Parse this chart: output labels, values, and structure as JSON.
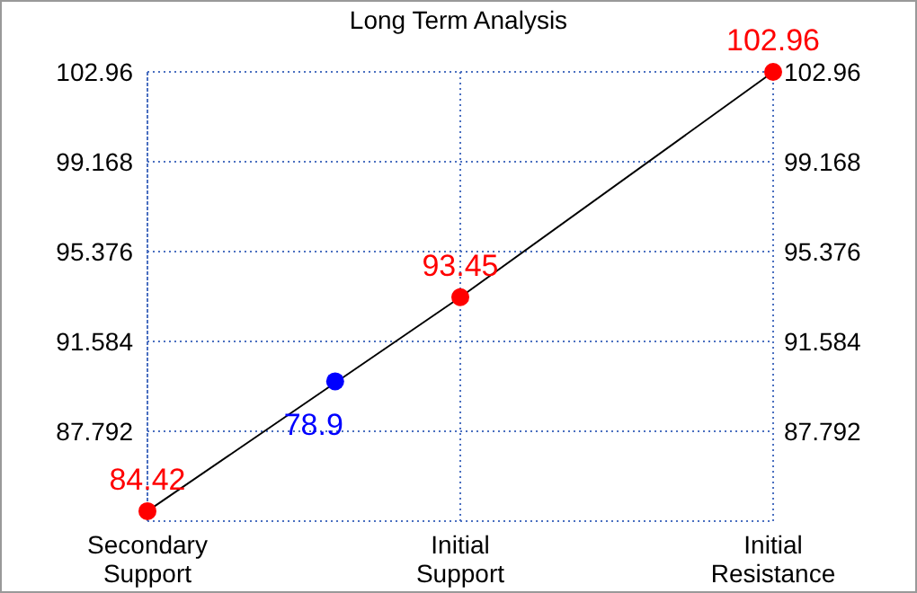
{
  "chart_data": {
    "type": "line",
    "title": "Long Term Analysis",
    "categories": [
      "Secondary\nSupport",
      null,
      null,
      null,
      null,
      "Initial\nSupport",
      null,
      null,
      null,
      null,
      "Initial\nResistance"
    ],
    "ylim": [
      84,
      102.96
    ],
    "yticks": [
      87.792,
      91.584,
      95.376,
      99.168,
      102.96
    ],
    "y2lim": [
      84,
      102.96
    ],
    "y2ticks": [
      87.792,
      91.584,
      95.376,
      99.168,
      102.96
    ],
    "grid": true,
    "series": [
      {
        "color": "#000000",
        "values": [
          84.42,
          null,
          null,
          null,
          null,
          93.45,
          null,
          null,
          null,
          null,
          102.96
        ]
      },
      {
        "type": "scatter",
        "marker": "circle",
        "color": "#ff0000",
        "values": [
          84.42,
          null,
          null,
          null,
          null,
          93.45,
          null,
          null,
          null,
          null,
          102.96
        ],
        "value_labels": [
          "84.42",
          null,
          null,
          null,
          null,
          "93.45",
          null,
          null,
          null,
          null,
          "102.96"
        ]
      },
      {
        "type": "scatter",
        "marker": "circle",
        "color": "#0000ff",
        "values": [
          null,
          null,
          null,
          89.9,
          null,
          null,
          null,
          null,
          null,
          null,
          null
        ]
      }
    ],
    "annotations": [
      "78.9"
    ]
  }
}
